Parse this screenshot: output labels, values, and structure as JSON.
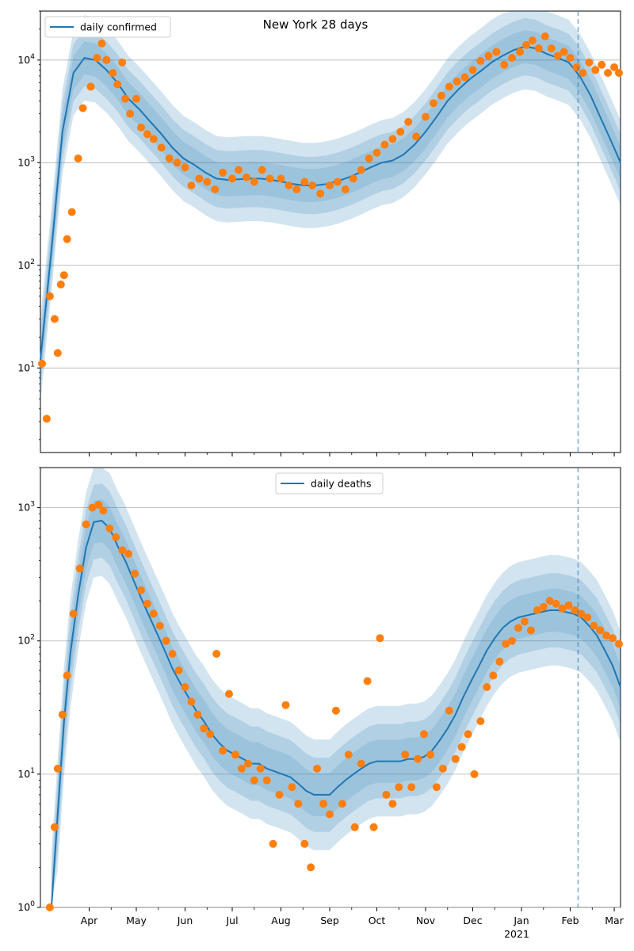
{
  "chart_data": [
    {
      "type": "line",
      "title": "New York 28 days",
      "xlabel": "",
      "ylabel": "",
      "yscale": "log",
      "ylim": [
        1.5,
        30000
      ],
      "xlim": [
        "2020-03-01",
        "2021-03-05"
      ],
      "grid": "horizontal",
      "legend": {
        "placement": "top-left",
        "entries": [
          "daily confirmed"
        ]
      },
      "forecast_marker_date": "2021-02-06",
      "series": [
        {
          "name": "daily confirmed",
          "type": "line",
          "color": "#1f77b4",
          "x": [
            "2020-03-01",
            "2020-03-08",
            "2020-03-15",
            "2020-03-22",
            "2020-03-29",
            "2020-04-05",
            "2020-04-12",
            "2020-04-19",
            "2020-04-26",
            "2020-05-03",
            "2020-05-10",
            "2020-05-17",
            "2020-05-24",
            "2020-05-31",
            "2020-06-07",
            "2020-06-14",
            "2020-06-21",
            "2020-06-28",
            "2020-07-05",
            "2020-07-12",
            "2020-07-19",
            "2020-07-26",
            "2020-08-02",
            "2020-08-09",
            "2020-08-16",
            "2020-08-23",
            "2020-08-30",
            "2020-09-06",
            "2020-09-13",
            "2020-09-20",
            "2020-09-27",
            "2020-10-04",
            "2020-10-11",
            "2020-10-18",
            "2020-10-25",
            "2020-11-01",
            "2020-11-08",
            "2020-11-15",
            "2020-11-22",
            "2020-11-29",
            "2020-12-06",
            "2020-12-13",
            "2020-12-20",
            "2020-12-27",
            "2021-01-03",
            "2021-01-10",
            "2021-01-17",
            "2021-01-24",
            "2021-01-31",
            "2021-02-07",
            "2021-02-14",
            "2021-02-21",
            "2021-02-28",
            "2021-03-05"
          ],
          "y": [
            12,
            140,
            2000,
            7500,
            10500,
            10000,
            8000,
            6000,
            4200,
            3300,
            2500,
            1900,
            1400,
            1100,
            950,
            800,
            700,
            680,
            690,
            700,
            700,
            680,
            650,
            620,
            600,
            600,
            620,
            660,
            720,
            800,
            900,
            1000,
            1050,
            1200,
            1500,
            2000,
            2800,
            4000,
            5200,
            6500,
            7800,
            9500,
            11000,
            12500,
            13500,
            13000,
            11500,
            10500,
            9500,
            7000,
            4500,
            2600,
            1500,
            1000
          ]
        },
        {
          "name": "daily confirmed (observed)",
          "type": "scatter",
          "color": "#ff7f0e",
          "x": [
            "2020-03-02",
            "2020-03-05",
            "2020-03-07",
            "2020-03-10",
            "2020-03-12",
            "2020-03-14",
            "2020-03-16",
            "2020-03-18",
            "2020-03-21",
            "2020-03-25",
            "2020-03-28",
            "2020-04-02",
            "2020-04-06",
            "2020-04-09",
            "2020-04-12",
            "2020-04-16",
            "2020-04-19",
            "2020-04-22",
            "2020-04-24",
            "2020-04-27",
            "2020-05-01",
            "2020-05-04",
            "2020-05-08",
            "2020-05-12",
            "2020-05-17",
            "2020-05-22",
            "2020-05-27",
            "2020-06-01",
            "2020-06-05",
            "2020-06-10",
            "2020-06-15",
            "2020-06-20",
            "2020-06-25",
            "2020-07-01",
            "2020-07-05",
            "2020-07-10",
            "2020-07-15",
            "2020-07-20",
            "2020-07-25",
            "2020-08-01",
            "2020-08-06",
            "2020-08-11",
            "2020-08-16",
            "2020-08-21",
            "2020-08-26",
            "2020-09-01",
            "2020-09-06",
            "2020-09-11",
            "2020-09-16",
            "2020-09-21",
            "2020-09-26",
            "2020-10-01",
            "2020-10-06",
            "2020-10-11",
            "2020-10-16",
            "2020-10-21",
            "2020-10-26",
            "2020-11-01",
            "2020-11-06",
            "2020-11-11",
            "2020-11-16",
            "2020-11-21",
            "2020-11-26",
            "2020-12-01",
            "2020-12-06",
            "2020-12-11",
            "2020-12-16",
            "2020-12-21",
            "2020-12-26",
            "2020-12-31",
            "2021-01-04",
            "2021-01-08",
            "2021-01-12",
            "2021-01-16",
            "2021-01-20",
            "2021-01-24",
            "2021-01-28",
            "2021-02-01",
            "2021-02-05",
            "2021-02-09",
            "2021-02-13",
            "2021-02-17",
            "2021-02-21",
            "2021-02-25",
            "2021-03-01",
            "2021-03-04"
          ],
          "y": [
            11,
            3.2,
            50,
            30,
            14,
            65,
            80,
            180,
            330,
            1100,
            3400,
            5500,
            10500,
            14500,
            10000,
            7500,
            5800,
            9500,
            4200,
            3000,
            4200,
            2200,
            1900,
            1700,
            1400,
            1100,
            1000,
            900,
            600,
            700,
            650,
            550,
            800,
            700,
            850,
            720,
            650,
            850,
            700,
            700,
            600,
            550,
            650,
            600,
            500,
            600,
            650,
            550,
            700,
            850,
            1100,
            1250,
            1500,
            1700,
            2000,
            2500,
            1800,
            2800,
            3800,
            4500,
            5500,
            6200,
            6800,
            8000,
            9800,
            11000,
            12000,
            9000,
            10500,
            12000,
            14000,
            15500,
            13000,
            17000,
            13000,
            11000,
            12000,
            10500,
            8500,
            7500,
            9500,
            8000,
            9000,
            7500,
            8500,
            7500
          ]
        }
      ]
    },
    {
      "type": "line",
      "title": "",
      "xlabel": "",
      "ylabel": "",
      "yscale": "log",
      "ylim": [
        1,
        2000
      ],
      "xlim": [
        "2020-03-01",
        "2021-03-05"
      ],
      "grid": "horizontal",
      "legend": {
        "placement": "top-center",
        "entries": [
          "daily deaths"
        ]
      },
      "forecast_marker_date": "2021-02-06",
      "x_tick_labels": [
        "Apr",
        "May",
        "Jun",
        "Jul",
        "Aug",
        "Sep",
        "Oct",
        "Nov",
        "Dec",
        "Jan",
        "Feb",
        "Mar"
      ],
      "x_tick_dates": [
        "2020-04-01",
        "2020-05-01",
        "2020-06-01",
        "2020-07-01",
        "2020-08-01",
        "2020-09-01",
        "2020-10-01",
        "2020-11-01",
        "2020-12-01",
        "2021-01-01",
        "2021-02-01",
        "2021-03-01"
      ],
      "x_secondary_label": "2021",
      "series": [
        {
          "name": "daily deaths",
          "type": "line",
          "color": "#1f77b4",
          "x": [
            "2020-03-08",
            "2020-03-12",
            "2020-03-16",
            "2020-03-20",
            "2020-03-25",
            "2020-03-30",
            "2020-04-04",
            "2020-04-09",
            "2020-04-14",
            "2020-04-19",
            "2020-04-24",
            "2020-04-29",
            "2020-05-04",
            "2020-05-09",
            "2020-05-14",
            "2020-05-19",
            "2020-05-24",
            "2020-05-29",
            "2020-06-03",
            "2020-06-08",
            "2020-06-13",
            "2020-06-18",
            "2020-06-23",
            "2020-06-28",
            "2020-07-03",
            "2020-07-08",
            "2020-07-13",
            "2020-07-18",
            "2020-07-23",
            "2020-07-28",
            "2020-08-02",
            "2020-08-07",
            "2020-08-12",
            "2020-08-17",
            "2020-08-22",
            "2020-08-27",
            "2020-09-01",
            "2020-09-06",
            "2020-09-11",
            "2020-09-16",
            "2020-09-21",
            "2020-09-26",
            "2020-10-01",
            "2020-10-06",
            "2020-10-11",
            "2020-10-16",
            "2020-10-21",
            "2020-10-26",
            "2020-10-31",
            "2020-11-05",
            "2020-11-10",
            "2020-11-15",
            "2020-11-20",
            "2020-11-25",
            "2020-11-30",
            "2020-12-05",
            "2020-12-10",
            "2020-12-15",
            "2020-12-20",
            "2020-12-25",
            "2020-12-30",
            "2021-01-04",
            "2021-01-09",
            "2021-01-14",
            "2021-01-19",
            "2021-01-24",
            "2021-01-29",
            "2021-02-03",
            "2021-02-08",
            "2021-02-13",
            "2021-02-18",
            "2021-02-23",
            "2021-02-28",
            "2021-03-05"
          ],
          "y": [
            1,
            5,
            25,
            80,
            220,
            500,
            780,
            800,
            700,
            520,
            400,
            290,
            210,
            155,
            115,
            85,
            62,
            48,
            38,
            30,
            25,
            20,
            17,
            15,
            14,
            13,
            12,
            12,
            11,
            10.5,
            10,
            9.5,
            8.5,
            7.5,
            7,
            7,
            7,
            8,
            9,
            10,
            11,
            12,
            12.5,
            12.5,
            12.5,
            12.5,
            13,
            13,
            13.5,
            15,
            18,
            22,
            28,
            38,
            50,
            65,
            85,
            105,
            125,
            140,
            150,
            155,
            160,
            165,
            170,
            170,
            165,
            160,
            150,
            130,
            110,
            85,
            65,
            45
          ]
        },
        {
          "name": "daily deaths (observed)",
          "type": "scatter",
          "color": "#ff7f0e",
          "x": [
            "2020-03-07",
            "2020-03-10",
            "2020-03-12",
            "2020-03-15",
            "2020-03-18",
            "2020-03-22",
            "2020-03-26",
            "2020-03-30",
            "2020-04-03",
            "2020-04-07",
            "2020-04-10",
            "2020-04-14",
            "2020-04-18",
            "2020-04-22",
            "2020-04-26",
            "2020-04-30",
            "2020-05-04",
            "2020-05-08",
            "2020-05-12",
            "2020-05-16",
            "2020-05-20",
            "2020-05-24",
            "2020-05-28",
            "2020-06-01",
            "2020-06-05",
            "2020-06-09",
            "2020-06-13",
            "2020-06-17",
            "2020-06-21",
            "2020-06-25",
            "2020-06-29",
            "2020-07-03",
            "2020-07-07",
            "2020-07-11",
            "2020-07-15",
            "2020-07-19",
            "2020-07-23",
            "2020-07-27",
            "2020-07-31",
            "2020-08-04",
            "2020-08-08",
            "2020-08-12",
            "2020-08-16",
            "2020-08-20",
            "2020-08-24",
            "2020-08-28",
            "2020-09-01",
            "2020-09-05",
            "2020-09-09",
            "2020-09-13",
            "2020-09-17",
            "2020-09-21",
            "2020-09-25",
            "2020-09-29",
            "2020-10-03",
            "2020-10-07",
            "2020-10-11",
            "2020-10-15",
            "2020-10-19",
            "2020-10-23",
            "2020-10-27",
            "2020-10-31",
            "2020-11-04",
            "2020-11-08",
            "2020-11-12",
            "2020-11-16",
            "2020-11-20",
            "2020-11-24",
            "2020-11-28",
            "2020-12-02",
            "2020-12-06",
            "2020-12-10",
            "2020-12-14",
            "2020-12-18",
            "2020-12-22",
            "2020-12-26",
            "2020-12-30",
            "2021-01-03",
            "2021-01-07",
            "2021-01-11",
            "2021-01-15",
            "2021-01-19",
            "2021-01-23",
            "2021-01-27",
            "2021-01-31",
            "2021-02-04",
            "2021-02-08",
            "2021-02-12",
            "2021-02-16",
            "2021-02-20",
            "2021-02-24",
            "2021-02-28",
            "2021-03-04"
          ],
          "y": [
            1,
            4,
            11,
            28,
            55,
            160,
            350,
            750,
            1000,
            1050,
            950,
            700,
            600,
            480,
            450,
            320,
            240,
            190,
            160,
            130,
            100,
            80,
            60,
            45,
            35,
            28,
            22,
            20,
            80,
            15,
            40,
            14,
            11,
            12,
            9,
            11,
            9,
            3,
            7,
            33,
            8,
            6,
            3,
            2,
            11,
            6,
            5,
            30,
            6,
            14,
            4,
            12,
            50,
            4,
            105,
            7,
            6,
            8,
            14,
            8,
            13,
            20,
            14,
            8,
            11,
            30,
            13,
            16,
            20,
            10,
            25,
            45,
            55,
            70,
            95,
            100,
            125,
            140,
            120,
            170,
            180,
            200,
            190,
            175,
            185,
            170,
            160,
            150,
            130,
            120,
            110,
            105,
            95
          ]
        }
      ]
    }
  ]
}
